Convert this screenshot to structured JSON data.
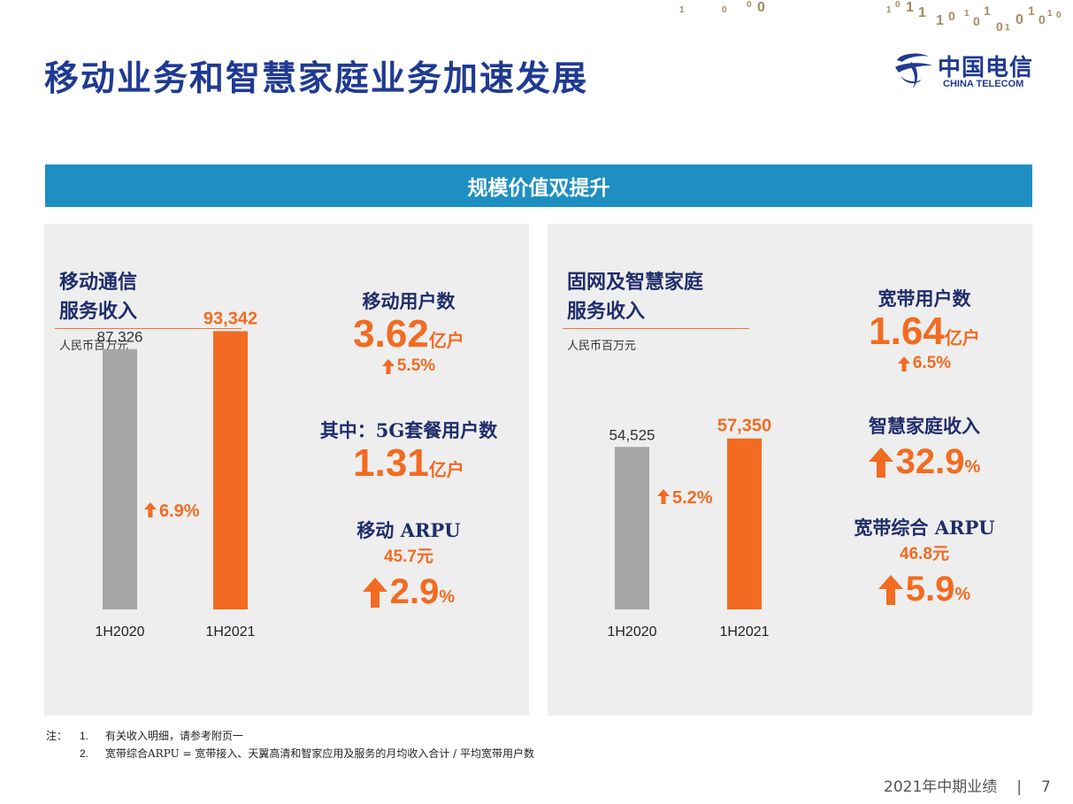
{
  "header": {
    "title": "移动业务和智慧家庭业务加速发展",
    "logo_cn": "中国电信",
    "logo_en": "CHINA TELECOM",
    "binary_digits": [
      "1",
      "0",
      "0",
      "0",
      "1",
      "0",
      "1",
      "1",
      "1",
      "0",
      "1",
      "0",
      "1",
      "0",
      "1",
      "0",
      "1",
      "0",
      "1",
      "0"
    ]
  },
  "banner": {
    "text": "规模价值双提升"
  },
  "colors": {
    "banner": "#1d8fc1",
    "title": "#1f3a93",
    "accent": "#f26b21",
    "bar_previous": "#a6a6a6",
    "bar_current": "#f26b21",
    "panel_bg": "#eeeeee"
  },
  "left_panel": {
    "title_line1": "移动通信",
    "title_line2": "服务收入",
    "unit": "人民币百万元",
    "kpis": {
      "users_label": "移动用户数",
      "users_value": "3.62",
      "users_unit": "亿户",
      "users_growth": "5.5%",
      "g5_label": "其中：5G套餐用户数",
      "g5_value": "1.31",
      "g5_unit": "亿户",
      "arpu_label": "移动 ARPU",
      "arpu_value": "45.7元",
      "arpu_growth": "2.9",
      "arpu_growth_unit": "%"
    }
  },
  "right_panel": {
    "title_line1": "固网及智慧家庭",
    "title_line2": "服务收入",
    "unit": "人民币百万元",
    "kpis": {
      "bb_users_label": "宽带用户数",
      "bb_users_value": "1.64",
      "bb_users_unit": "亿户",
      "bb_users_growth": "6.5%",
      "smart_home_label": "智慧家庭收入",
      "smart_home_growth": "32.9",
      "smart_home_growth_unit": "%",
      "bb_arpu_label": "宽带综合 ARPU",
      "bb_arpu_value": "46.8元",
      "bb_arpu_growth": "5.9",
      "bb_arpu_growth_unit": "%"
    }
  },
  "chart_data": [
    {
      "type": "bar",
      "categories": [
        "1H2020",
        "1H2021"
      ],
      "values": [
        87326,
        93342
      ],
      "value_labels": [
        "87,326",
        "93,342"
      ],
      "growth_label": "6.9%",
      "ylim": [
        0,
        100000
      ]
    },
    {
      "type": "bar",
      "categories": [
        "1H2020",
        "1H2021"
      ],
      "values": [
        54525,
        57350
      ],
      "value_labels": [
        "54,525",
        "57,350"
      ],
      "growth_label": "5.2%",
      "ylim": [
        0,
        100000
      ]
    }
  ],
  "notes": {
    "label": "注：",
    "items": [
      {
        "index": "1.",
        "text": "有关收入明细，请参考附页一"
      },
      {
        "index": "2.",
        "text": "宽带综合ARPU = 宽带接入、天翼高清和智家应用及服务的月均收入合计 / 平均宽带用户数"
      }
    ]
  },
  "footer": {
    "report": "2021年中期业绩",
    "separator": "|",
    "page": "7"
  }
}
